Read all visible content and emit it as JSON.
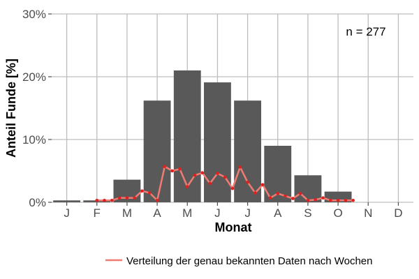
{
  "chart_data": {
    "type": "bar",
    "categories": [
      "J",
      "F",
      "M",
      "A",
      "M",
      "J",
      "J",
      "A",
      "S",
      "O",
      "N",
      "D"
    ],
    "values": [
      0.3,
      0.3,
      3.6,
      16.2,
      21.0,
      19.1,
      16.2,
      9.0,
      4.3,
      1.7,
      0,
      0
    ],
    "xlabel": "Monat",
    "ylabel": "Anteil Funde [%]",
    "ylim": [
      0,
      30
    ],
    "yticks": [
      0,
      10,
      20,
      30
    ],
    "ytick_labels": [
      "0%",
      "10%",
      "20%",
      "30%"
    ],
    "grid": true,
    "bar_color": "#595959",
    "annotation": "n = 277",
    "line_series": {
      "name": "Verteilung der genau bekannten Daten nach Wochen",
      "color": "#f07b72",
      "point_color": "#e0211f",
      "x": [
        2.0,
        2.25,
        2.5,
        2.75,
        3.0,
        3.25,
        3.5,
        3.75,
        4.0,
        4.25,
        4.5,
        4.75,
        5.0,
        5.25,
        5.5,
        5.75,
        6.0,
        6.25,
        6.5,
        6.75,
        7.0,
        7.25,
        7.5,
        7.75,
        8.0,
        8.25,
        8.5,
        8.75,
        9.0,
        9.25,
        9.5,
        9.75,
        10.0,
        10.25,
        10.5
      ],
      "y": [
        0.3,
        0.3,
        0.3,
        0.7,
        0.7,
        0.7,
        1.8,
        1.5,
        0.3,
        5.7,
        5.0,
        5.3,
        2.5,
        4.3,
        4.7,
        3.0,
        4.6,
        4.0,
        2.2,
        5.6,
        3.2,
        1.5,
        2.8,
        0.7,
        1.4,
        1.0,
        0.6,
        1.4,
        0.3,
        0.4,
        0.7,
        0.3,
        0.3,
        0.3,
        0.3
      ]
    }
  }
}
